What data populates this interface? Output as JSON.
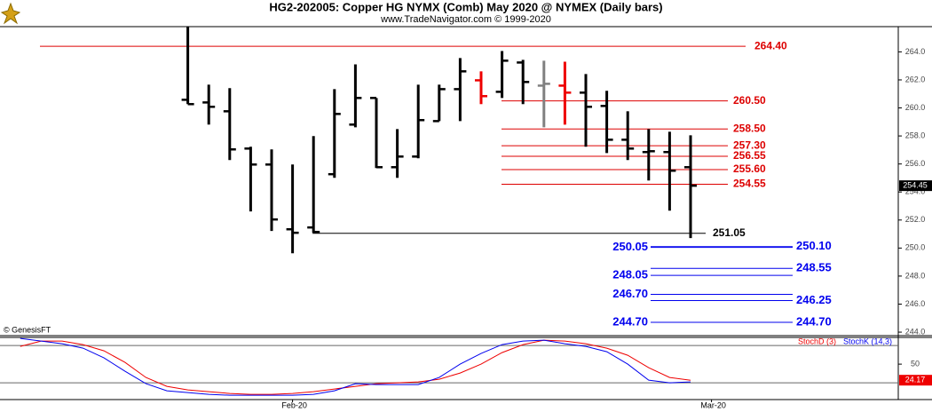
{
  "chart_data": [
    {
      "type": "ohlc",
      "title": "HG2-202005:  Copper HG NYMX (Comb) May 2020 @ NYMEX  (Daily bars)",
      "subtitle": "www.TradeNavigator.com © 1999-2020",
      "note": "© GenesisFT",
      "categories": [
        null,
        null,
        null,
        null,
        null,
        null,
        null,
        null,
        null,
        null,
        null,
        null,
        null,
        "Feb-20",
        null,
        null,
        null,
        null,
        null,
        null,
        null,
        null,
        null,
        null,
        null,
        null,
        null,
        null,
        null,
        null,
        null,
        null,
        null,
        "Mar-20"
      ],
      "open": [
        null,
        null,
        null,
        null,
        null,
        null,
        null,
        null,
        260.58,
        260.39,
        259.76,
        257.1,
        255.96,
        251.34,
        251.47,
        255.27,
        258.81,
        260.71,
        255.77,
        256.53,
        259.06,
        261.34,
        261.97,
        261.15,
        263.24,
        261.59,
        261.59,
        261.09,
        260.14,
        257.73,
        256.85,
        256.85,
        255.77,
        null
      ],
      "high": [
        null,
        null,
        null,
        null,
        null,
        null,
        null,
        null,
        265.8,
        261.66,
        261.41,
        257.23,
        257.04,
        255.96,
        257.99,
        261.34,
        263.11,
        260.71,
        258.49,
        261.66,
        261.66,
        263.56,
        262.61,
        264.06,
        263.43,
        263.37,
        263.3,
        262.42,
        261.22,
        259.76,
        258.49,
        258.3,
        258.05,
        null
      ],
      "low": [
        null,
        null,
        null,
        null,
        null,
        null,
        null,
        null,
        260.27,
        258.81,
        256.28,
        252.61,
        251.22,
        249.63,
        251.09,
        255.01,
        258.62,
        255.71,
        255.01,
        256.41,
        259.06,
        259.06,
        260.27,
        260.71,
        260.27,
        258.62,
        258.81,
        257.23,
        256.78,
        256.28,
        254.82,
        252.67,
        250.71,
        null
      ],
      "close": [
        null,
        null,
        null,
        null,
        null,
        null,
        null,
        null,
        260.27,
        260.08,
        257.04,
        255.96,
        252.04,
        251.09,
        251.15,
        259.57,
        260.71,
        255.77,
        256.53,
        259.13,
        261.34,
        262.61,
        260.84,
        263.37,
        261.85,
        261.72,
        261.09,
        260.08,
        257.73,
        257.1,
        256.91,
        255.52,
        254.45,
        null
      ],
      "colors": [
        null,
        null,
        null,
        null,
        null,
        null,
        null,
        null,
        "#000000",
        "#000000",
        "#000000",
        "#000000",
        "#000000",
        "#000000",
        "#000000",
        "#000000",
        "#000000",
        "#000000",
        "#000000",
        "#000000",
        "#000000",
        "#000000",
        "#ee0000",
        "#000000",
        "#000000",
        "#808080",
        "#ee0000",
        "#000000",
        "#000000",
        "#000000",
        "#000000",
        "#000000",
        "#000000",
        null
      ],
      "ylim": [
        243.75,
        265.8
      ],
      "yticks": [
        {
          "value": 244,
          "label": "244.0"
        },
        {
          "value": 246,
          "label": "246.0"
        },
        {
          "value": 248,
          "label": "248.0"
        },
        {
          "value": 250,
          "label": "250.0"
        },
        {
          "value": 252,
          "label": "252.0"
        },
        {
          "value": 254,
          "label": "254.0"
        },
        {
          "value": 256,
          "label": "256.0"
        },
        {
          "value": 258,
          "label": "258.0"
        },
        {
          "value": 260,
          "label": "260.0"
        },
        {
          "value": 262,
          "label": "262.0"
        },
        {
          "value": 264,
          "label": "264.0"
        }
      ],
      "level_color": "#dd0000",
      "top_level": {
        "value": 264.4,
        "label": "264.40"
      },
      "red_levels": [
        {
          "value": 260.5,
          "label": "260.50"
        },
        {
          "value": 258.5,
          "label": "258.50"
        },
        {
          "value": 257.3,
          "label": "257.30"
        },
        {
          "value": 256.55,
          "label": "256.55"
        },
        {
          "value": 255.6,
          "label": "255.60"
        },
        {
          "value": 254.55,
          "label": "254.55"
        }
      ],
      "pivot_color": "#000000",
      "pivot_level": {
        "value": 251.05,
        "label": "251.05"
      },
      "target_color": "#0000ee",
      "targets": [
        {
          "left": {
            "value": 250.05,
            "label": "250.05"
          },
          "right": {
            "value": 250.1,
            "label": "250.10"
          }
        },
        {
          "left": {
            "value": 248.05,
            "label": "248.05"
          },
          "right": {
            "value": 248.55,
            "label": "248.55"
          }
        },
        {
          "left": {
            "value": 246.7,
            "label": "246.70"
          },
          "right": {
            "value": 246.25,
            "label": "246.25"
          }
        },
        {
          "left": {
            "value": 244.7,
            "label": "244.70"
          },
          "right": {
            "value": 244.7,
            "label": "244.70"
          }
        }
      ]
    },
    {
      "type": "line",
      "series": [
        {
          "name": "StochD (3)",
          "color": "#ee0000",
          "values": [
            78.6,
            87.1,
            87.1,
            81.4,
            71.4,
            52.9,
            28.6,
            14.3,
            8.6,
            5.7,
            2.9,
            1.4,
            1.4,
            2.9,
            5.7,
            10,
            14.3,
            18.6,
            20,
            21.4,
            25.7,
            35.7,
            50,
            68.6,
            81.4,
            88.6,
            87.1,
            82.9,
            75.7,
            64.3,
            44.3,
            28.6,
            24.17,
            null
          ]
        },
        {
          "name": "StochK (14,3)",
          "color": "#0000ee",
          "values": [
            91.4,
            87.1,
            82.9,
            75.7,
            60,
            38.6,
            18.6,
            7.1,
            4.3,
            1.4,
            0,
            0,
            0,
            0,
            1.4,
            7.1,
            18.6,
            17.1,
            17.1,
            17.1,
            28.6,
            50,
            67.1,
            81.4,
            87.1,
            88.6,
            82.9,
            78.6,
            70,
            50,
            24.3,
            20,
            21.4,
            null
          ]
        }
      ],
      "ylim": [
        -7,
        93
      ],
      "yticks": [
        50
      ],
      "hlines": [
        20,
        80
      ]
    }
  ]
}
